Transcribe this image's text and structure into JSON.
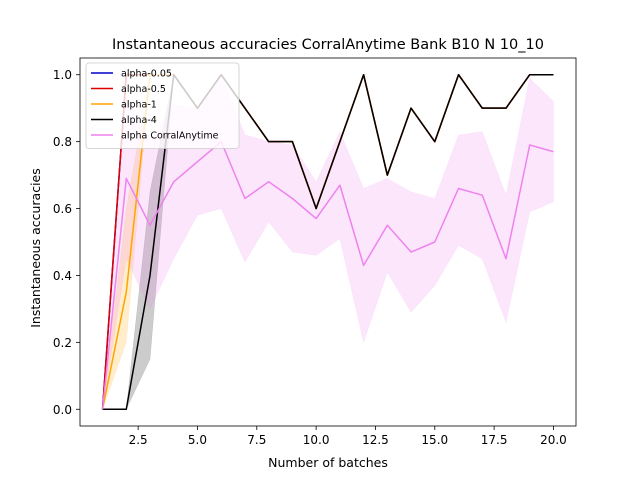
{
  "chart_data": {
    "type": "line",
    "title": "Instantaneous accuracies CorralAnytime Bank B10 N 10_10",
    "xlabel": "Number of batches",
    "ylabel": "Instantaneous accuracies",
    "xlim": [
      0.05,
      20.95
    ],
    "ylim": [
      -0.05,
      1.05
    ],
    "xticks": [
      2.5,
      5.0,
      7.5,
      10.0,
      12.5,
      15.0,
      17.5,
      20.0
    ],
    "xtick_labels": [
      "2.5",
      "5.0",
      "7.5",
      "10.0",
      "12.5",
      "15.0",
      "17.5",
      "20.0"
    ],
    "yticks": [
      0.0,
      0.2,
      0.4,
      0.6,
      0.8,
      1.0
    ],
    "ytick_labels": [
      "0.0",
      "0.2",
      "0.4",
      "0.6",
      "0.8",
      "1.0"
    ],
    "grid": false,
    "legend_position": "top-left",
    "x": [
      1,
      2,
      3,
      4,
      5,
      6,
      7,
      8,
      9,
      10,
      11,
      12,
      13,
      14,
      15,
      16,
      17,
      18,
      19,
      20
    ],
    "series": [
      {
        "name": "alpha-0.05",
        "color": "#0000cc",
        "values": [
          0.0,
          1.0,
          1.0,
          1.0,
          0.9,
          1.0,
          0.9,
          0.8,
          0.8,
          0.6,
          0.8,
          1.0,
          0.7,
          0.9,
          0.8,
          1.0,
          0.9,
          0.9,
          1.0,
          1.0
        ]
      },
      {
        "name": "alpha-0.5",
        "color": "#dd0000",
        "values": [
          0.0,
          1.0,
          1.0,
          1.0,
          0.9,
          1.0,
          0.9,
          0.8,
          0.8,
          0.6,
          0.8,
          1.0,
          0.7,
          0.9,
          0.8,
          1.0,
          0.9,
          0.9,
          1.0,
          1.0
        ]
      },
      {
        "name": "alpha-1",
        "color": "#ffa500",
        "values": [
          0.0,
          0.35,
          1.0,
          1.0,
          0.9,
          1.0,
          0.9,
          0.8,
          0.8,
          0.6,
          0.8,
          1.0,
          0.7,
          0.9,
          0.8,
          1.0,
          0.9,
          0.9,
          1.0,
          1.0
        ],
        "band_lower": [
          0.0,
          0.2,
          1.0,
          1.0,
          0.9,
          1.0,
          0.9,
          0.8,
          0.8,
          0.6,
          0.8,
          1.0,
          0.7,
          0.9,
          0.8,
          1.0,
          0.9,
          0.9,
          1.0,
          1.0
        ],
        "band_upper": [
          0.0,
          0.6,
          1.0,
          1.0,
          0.9,
          1.0,
          0.9,
          0.8,
          0.8,
          0.6,
          0.8,
          1.0,
          0.7,
          0.9,
          0.8,
          1.0,
          0.9,
          0.9,
          1.0,
          1.0
        ]
      },
      {
        "name": "alpha-4",
        "color": "#000000",
        "values": [
          0.0,
          0.0,
          0.4,
          1.0,
          0.9,
          1.0,
          0.9,
          0.8,
          0.8,
          0.6,
          0.8,
          1.0,
          0.7,
          0.9,
          0.8,
          1.0,
          0.9,
          0.9,
          1.0,
          1.0
        ],
        "band_lower": [
          0.0,
          0.0,
          0.15,
          1.0,
          0.9,
          1.0,
          0.9,
          0.8,
          0.8,
          0.6,
          0.8,
          1.0,
          0.7,
          0.9,
          0.8,
          1.0,
          0.9,
          0.9,
          1.0,
          1.0
        ],
        "band_upper": [
          0.0,
          0.0,
          0.65,
          1.0,
          0.9,
          1.0,
          0.9,
          0.8,
          0.8,
          0.6,
          0.8,
          1.0,
          0.7,
          0.9,
          0.8,
          1.0,
          0.9,
          0.9,
          1.0,
          1.0
        ]
      },
      {
        "name": "alpha CorralAnytime",
        "color": "#ee82ee",
        "values": [
          0.0,
          0.69,
          0.55,
          0.68,
          0.74,
          0.8,
          0.63,
          0.68,
          0.63,
          0.57,
          0.67,
          0.43,
          0.55,
          0.47,
          0.5,
          0.66,
          0.64,
          0.45,
          0.79,
          0.77
        ],
        "band_lower": [
          0.0,
          0.45,
          0.3,
          0.45,
          0.58,
          0.6,
          0.44,
          0.56,
          0.47,
          0.46,
          0.51,
          0.2,
          0.41,
          0.29,
          0.37,
          0.49,
          0.45,
          0.26,
          0.59,
          0.62
        ],
        "band_upper": [
          0.0,
          0.93,
          0.8,
          0.91,
          0.9,
          1.0,
          0.82,
          0.8,
          0.79,
          0.68,
          0.83,
          0.66,
          0.69,
          0.65,
          0.63,
          0.82,
          0.83,
          0.64,
          0.99,
          0.92
        ]
      }
    ]
  }
}
